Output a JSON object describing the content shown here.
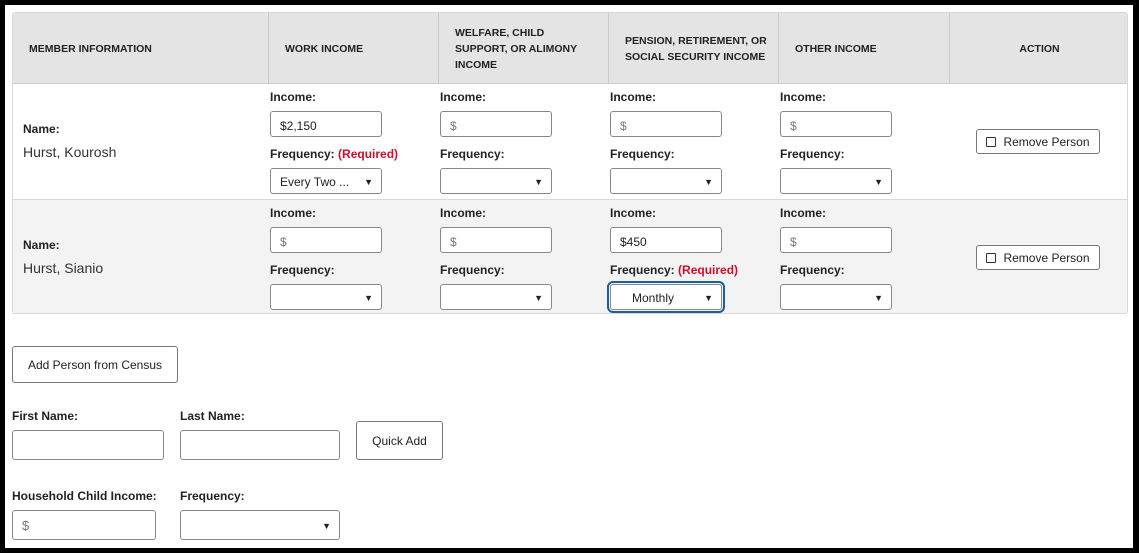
{
  "table": {
    "headers": [
      "MEMBER INFORMATION",
      "WORK INCOME",
      "WELFARE, CHILD SUPPORT, OR ALIMONY INCOME",
      "PENSION, RETIREMENT, OR SOCIAL SECURITY INCOME",
      "OTHER INCOME",
      "ACTION"
    ],
    "name_label": "Name:",
    "income_label": "Income:",
    "frequency_label": "Frequency:",
    "required_label": "(Required)",
    "remove_label": "Remove Person",
    "rows": [
      {
        "name": "Hurst, Kourosh",
        "incomes": [
          {
            "value": "$2,150",
            "frequency": "Every Two ...",
            "required": true
          },
          {
            "value": "",
            "placeholder": "$",
            "frequency": ""
          },
          {
            "value": "",
            "placeholder": "$",
            "frequency": ""
          },
          {
            "value": "",
            "placeholder": "$",
            "frequency": ""
          }
        ]
      },
      {
        "name": "Hurst, Sianio",
        "incomes": [
          {
            "value": "",
            "placeholder": "$",
            "frequency": ""
          },
          {
            "value": "",
            "placeholder": "$",
            "frequency": ""
          },
          {
            "value": "$450",
            "frequency": "Monthly",
            "required": true,
            "focused": true
          },
          {
            "value": "",
            "placeholder": "$",
            "frequency": ""
          }
        ]
      }
    ]
  },
  "add_person_label": "Add Person from Census",
  "first_name_label": "First Name:",
  "last_name_label": "Last Name:",
  "quick_add_label": "Quick Add",
  "household_income_label": "Household Child Income:",
  "household_income_placeholder": "$",
  "household_frequency_label": "Frequency:",
  "colors": {
    "required": "#c8102e",
    "focus": "#1a5e9a",
    "header_bg": "#e4e4e4"
  }
}
